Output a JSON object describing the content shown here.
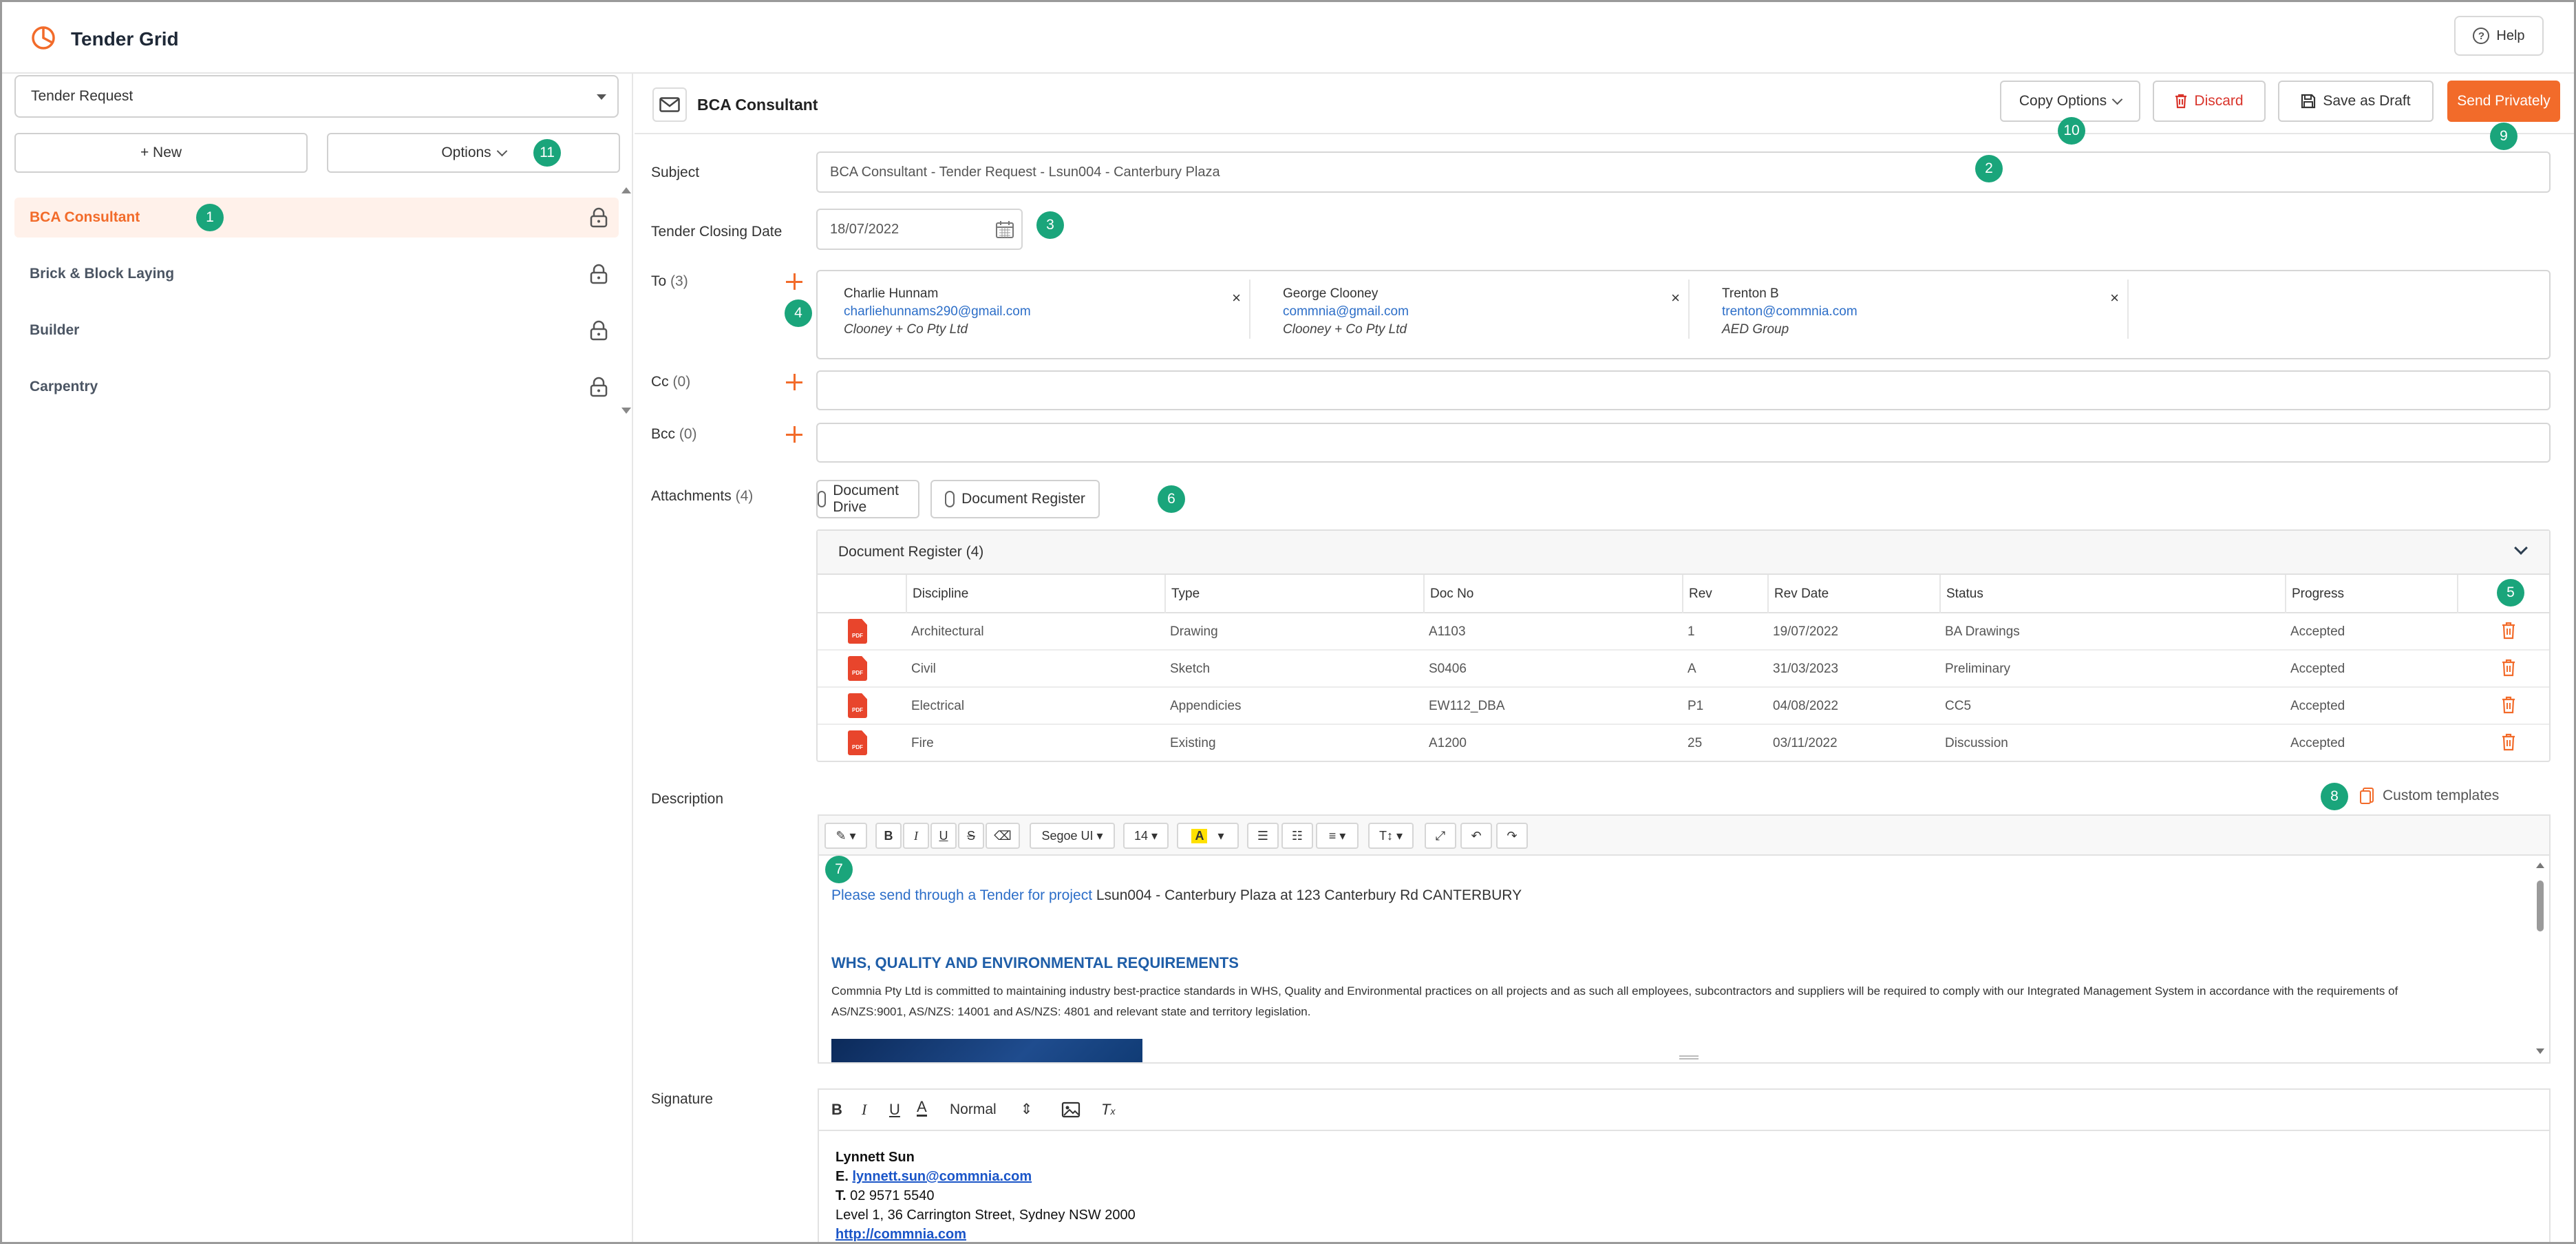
{
  "app": {
    "title": "Tender Grid",
    "help_label": "Help",
    "accent": "#f26b2a",
    "badge_color": "#1aa57b"
  },
  "sidebar": {
    "select_value": "Tender Request",
    "new_label": "+ New",
    "options_label": "Options",
    "items": [
      {
        "label": "BCA Consultant",
        "active": true
      },
      {
        "label": "Brick & Block Laying",
        "active": false
      },
      {
        "label": "Builder",
        "active": false
      },
      {
        "label": "Carpentry",
        "active": false
      }
    ]
  },
  "toolbar": {
    "title": "BCA Consultant",
    "copy_options_label": "Copy Options",
    "discard_label": "Discard",
    "save_draft_label": "Save as Draft",
    "send_label": "Send Privately"
  },
  "form": {
    "subject_label": "Subject",
    "subject_value": "BCA Consultant - Tender Request - Lsun004 - Canterbury Plaza",
    "closing_label": "Tender Closing Date",
    "closing_value": "18/07/2022",
    "to_label": "To",
    "to_count": "(3)",
    "cc_label": "Cc",
    "cc_count": "(0)",
    "bcc_label": "Bcc",
    "bcc_count": "(0)",
    "recipients": [
      {
        "name": "Charlie Hunnam",
        "email": "charliehunnams290@gmail.com",
        "company": "Clooney + Co Pty Ltd"
      },
      {
        "name": "George Clooney",
        "email": "commnia@gmail.com",
        "company": "Clooney + Co Pty Ltd"
      },
      {
        "name": "Trenton B",
        "email": "trenton@commnia.com",
        "company": "AED Group"
      }
    ],
    "attachments_label": "Attachments",
    "attachments_count": "(4)",
    "document_drive_label": "Document Drive",
    "document_register_label": "Document Register",
    "description_label": "Description",
    "custom_templates_label": "Custom templates",
    "signature_label": "Signature"
  },
  "doc_register": {
    "title": "Document Register (4)",
    "columns": [
      "Discipline",
      "Type",
      "Doc No",
      "Rev",
      "Rev Date",
      "Status",
      "Progress"
    ],
    "pdf_label": "PDF",
    "rows": [
      {
        "discipline": "Architectural",
        "type": "Drawing",
        "doc_no": "A1103",
        "rev": "1",
        "rev_date": "19/07/2022",
        "status": "BA Drawings",
        "progress": "Accepted"
      },
      {
        "discipline": "Civil",
        "type": "Sketch",
        "doc_no": "S0406",
        "rev": "A",
        "rev_date": "31/03/2023",
        "status": "Preliminary",
        "progress": "Accepted"
      },
      {
        "discipline": "Electrical",
        "type": "Appendicies",
        "doc_no": "EW112_DBA",
        "rev": "P1",
        "rev_date": "04/08/2022",
        "status": "CC5",
        "progress": "Accepted"
      },
      {
        "discipline": "Fire",
        "type": "Existing",
        "doc_no": "A1200",
        "rev": "25",
        "rev_date": "03/11/2022",
        "status": "Discussion",
        "progress": "Accepted"
      }
    ]
  },
  "editor": {
    "font_name": "Segoe UI",
    "font_size": "14",
    "link_text": "Please send through a Tender for project",
    "intro_rest": " Lsun004 - Canterbury Plaza at 123 Canterbury Rd CANTERBURY",
    "heading": "WHS, QUALITY AND ENVIRONMENTAL REQUIREMENTS",
    "para1": "Commnia Pty Ltd is committed to maintaining industry best-practice standards in WHS, Quality and Environmental practices on all projects and as such all employees, subcontractors and suppliers will be required to comply with our Integrated Management System in accordance with the requirements of",
    "para2": "AS/NZS:9001, AS/NZS: 14001 and AS/NZS: 4801 and relevant state and territory legislation."
  },
  "signature": {
    "format": "Normal",
    "name": "Lynnett Sun",
    "email_prefix": "E.",
    "email": "lynnett.sun@commnia.com",
    "phone_prefix": "T.",
    "phone": "02 9571 5540",
    "address": "Level 1, 36 Carrington Street, Sydney NSW 2000",
    "website": "http://commnia.com"
  },
  "badges": [
    "1",
    "2",
    "3",
    "4",
    "5",
    "6",
    "7",
    "8",
    "9",
    "10",
    "11"
  ]
}
